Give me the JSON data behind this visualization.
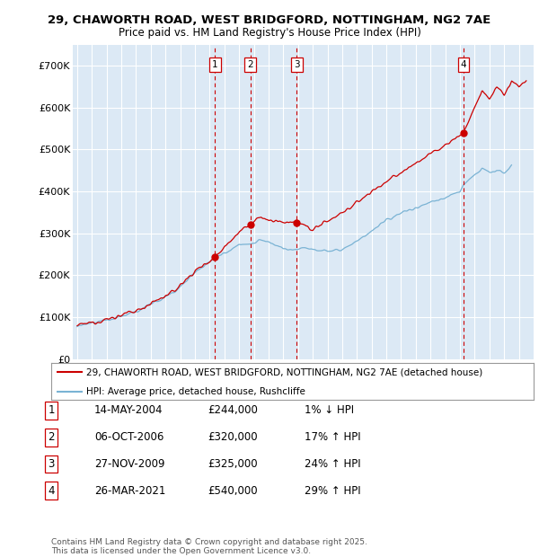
{
  "title_line1": "29, CHAWORTH ROAD, WEST BRIDGFORD, NOTTINGHAM, NG2 7AE",
  "title_line2": "Price paid vs. HM Land Registry's House Price Index (HPI)",
  "ylim": [
    0,
    750000
  ],
  "yticks": [
    0,
    100000,
    200000,
    300000,
    400000,
    500000,
    600000,
    700000
  ],
  "ytick_labels": [
    "£0",
    "£100K",
    "£200K",
    "£300K",
    "£400K",
    "£500K",
    "£600K",
    "£700K"
  ],
  "xlim_start": 1994.7,
  "xlim_end": 2026.0,
  "bg_color": "#dce9f5",
  "red_line_color": "#cc0000",
  "blue_line_color": "#7ab3d4",
  "vline_color": "#cc0000",
  "sale_dates_num": [
    2004.36,
    2006.76,
    2009.91,
    2021.23
  ],
  "sale_prices": [
    244000,
    320000,
    325000,
    540000
  ],
  "sale_labels": [
    "1",
    "2",
    "3",
    "4"
  ],
  "legend_entries": [
    "29, CHAWORTH ROAD, WEST BRIDGFORD, NOTTINGHAM, NG2 7AE (detached house)",
    "HPI: Average price, detached house, Rushcliffe"
  ],
  "table_rows": [
    [
      "1",
      "14-MAY-2004",
      "£244,000",
      "1% ↓ HPI"
    ],
    [
      "2",
      "06-OCT-2006",
      "£320,000",
      "17% ↑ HPI"
    ],
    [
      "3",
      "27-NOV-2009",
      "£325,000",
      "24% ↑ HPI"
    ],
    [
      "4",
      "26-MAR-2021",
      "£540,000",
      "29% ↑ HPI"
    ]
  ],
  "footer": "Contains HM Land Registry data © Crown copyright and database right 2025.\nThis data is licensed under the Open Government Licence v3.0."
}
